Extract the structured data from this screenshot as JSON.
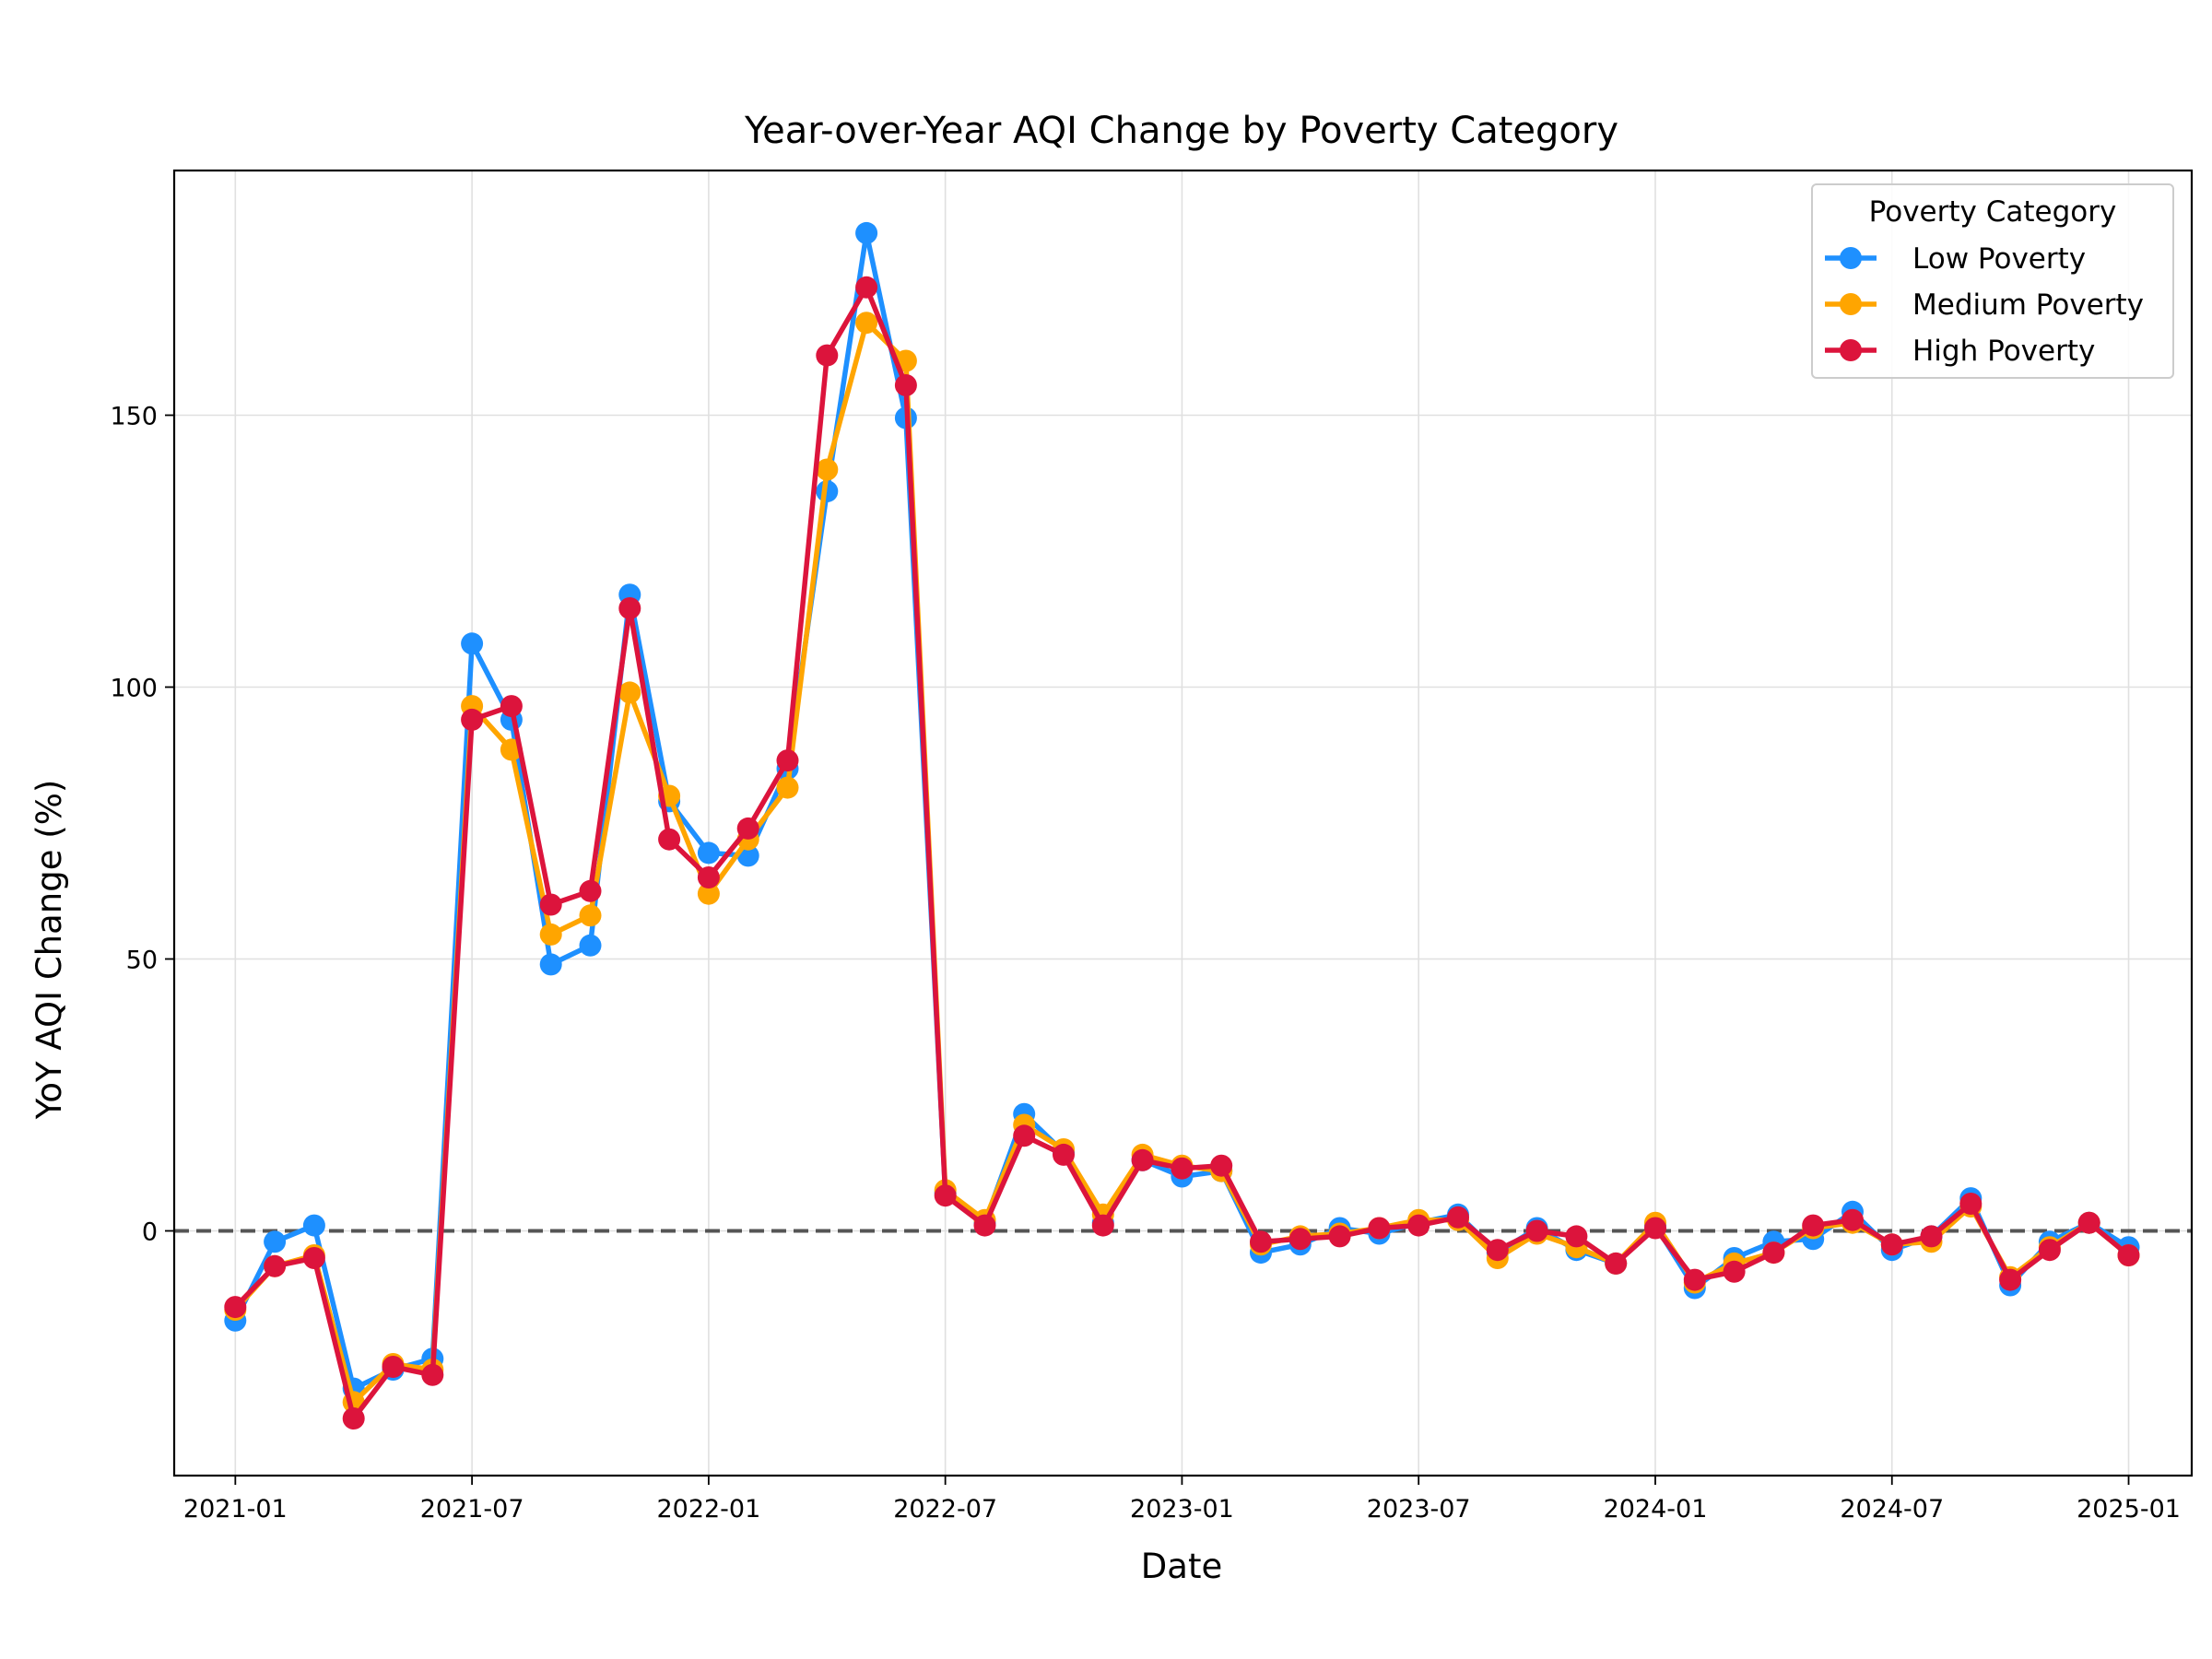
{
  "chart_data": {
    "type": "line",
    "title": "Year-over-Year AQI Change by Poverty Category",
    "xlabel": "Date",
    "ylabel": "YoY AQI Change (%)",
    "x_tick_labels": [
      "2021-01",
      "2021-07",
      "2022-01",
      "2022-07",
      "2023-01",
      "2023-07",
      "2024-01",
      "2024-07",
      "2025-01"
    ],
    "y_ticks": [
      0,
      50,
      100,
      150
    ],
    "ylim": [
      -45,
      195
    ],
    "xlim": [
      "2020-12",
      "2025-03"
    ],
    "grid": true,
    "reference_line": {
      "y": 0,
      "style": "dashed",
      "color": "#555555"
    },
    "legend": {
      "title": "Poverty Category",
      "placement": "top-right"
    },
    "x": [
      "2021-01",
      "2021-02",
      "2021-03",
      "2021-04",
      "2021-05",
      "2021-06",
      "2021-07",
      "2021-08",
      "2021-09",
      "2021-10",
      "2021-11",
      "2021-12",
      "2022-01",
      "2022-02",
      "2022-03",
      "2022-04",
      "2022-05",
      "2022-06",
      "2022-07",
      "2022-08",
      "2022-09",
      "2022-10",
      "2022-11",
      "2022-12",
      "2023-01",
      "2023-02",
      "2023-03",
      "2023-04",
      "2023-05",
      "2023-06",
      "2023-07",
      "2023-08",
      "2023-09",
      "2023-10",
      "2023-11",
      "2023-12",
      "2024-01",
      "2024-02",
      "2024-03",
      "2024-04",
      "2024-05",
      "2024-06",
      "2024-07",
      "2024-08",
      "2024-09",
      "2024-10",
      "2024-11",
      "2024-12",
      "2025-01"
    ],
    "series": [
      {
        "name": "Low Poverty",
        "color": "#1e90ff",
        "values": [
          -16.5,
          -2,
          1,
          -29,
          -25.5,
          -23.5,
          108,
          94,
          49,
          52.5,
          117,
          79,
          69.5,
          69,
          85,
          136,
          183.5,
          149.5,
          7,
          1.5,
          21.5,
          14.5,
          1.5,
          13,
          10,
          11,
          -4,
          -2.5,
          0.5,
          -0.5,
          1.5,
          3,
          -4,
          0.5,
          -3.5,
          -6,
          1,
          -10.5,
          -5,
          -2,
          -1.5,
          3.5,
          -3.5,
          -1,
          6,
          -10,
          -2,
          1.5,
          -3
        ]
      },
      {
        "name": "Medium Poverty",
        "color": "#ffa500",
        "values": [
          -14.5,
          -6.5,
          -4.5,
          -31.5,
          -24.5,
          -25.5,
          96.5,
          88.5,
          54.5,
          58,
          99,
          80,
          62,
          72,
          81.5,
          140,
          167,
          160,
          7.5,
          2,
          19.5,
          15,
          3,
          14,
          12,
          11,
          -2.5,
          -1,
          -0.5,
          0.5,
          2,
          2,
          -5,
          -0.5,
          -3,
          -6,
          1.5,
          -9.5,
          -6,
          -4,
          0.5,
          1.5,
          -2.5,
          -2,
          4.5,
          -8.5,
          -3,
          1.5,
          -4.5
        ]
      },
      {
        "name": "High Poverty",
        "color": "#dc143c",
        "values": [
          -14,
          -6.5,
          -5,
          -34.5,
          -25,
          -26.5,
          94,
          96.5,
          60,
          62.5,
          114.5,
          72,
          65,
          74,
          86.5,
          161,
          173.5,
          155.5,
          6.5,
          1,
          17.5,
          14,
          1,
          13,
          11.5,
          12,
          -2,
          -1.5,
          -1,
          0.5,
          1,
          2.5,
          -3.5,
          0,
          -1,
          -6,
          0.5,
          -9,
          -7.5,
          -4,
          1,
          2,
          -2.5,
          -1,
          5,
          -9,
          -3.5,
          1.5,
          -4.5
        ]
      }
    ]
  }
}
